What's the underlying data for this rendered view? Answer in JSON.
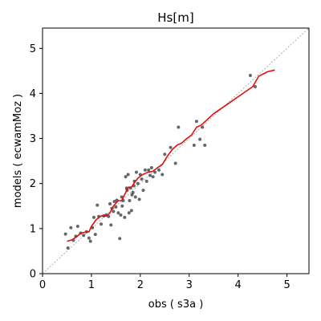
{
  "chart_data": {
    "type": "scatter",
    "title": "Hs[m]",
    "xlabel": "obs ( s3a )",
    "ylabel": "models ( ecwamMoz )",
    "xlim": [
      0,
      5.45
    ],
    "ylim": [
      0,
      5.45
    ],
    "xticks": [
      0,
      1,
      2,
      3,
      4,
      5
    ],
    "yticks": [
      0,
      1,
      2,
      3,
      4,
      5
    ],
    "grid": false,
    "legend": "none",
    "colors": {
      "points": "#333333",
      "fit_line": "#e01010",
      "reference_line": "#999999",
      "frame": "#000000"
    },
    "series": [
      {
        "kind": "scatter",
        "points": [
          [
            0.47,
            0.88
          ],
          [
            0.52,
            0.57
          ],
          [
            0.58,
            1.02
          ],
          [
            0.63,
            0.74
          ],
          [
            0.68,
            0.83
          ],
          [
            0.72,
            1.05
          ],
          [
            0.78,
            0.9
          ],
          [
            0.84,
            0.85
          ],
          [
            0.9,
            0.93
          ],
          [
            0.95,
            0.79
          ],
          [
            0.98,
            0.72
          ],
          [
            1.02,
            1.02
          ],
          [
            1.05,
            1.25
          ],
          [
            1.08,
            0.87
          ],
          [
            1.12,
            1.52
          ],
          [
            1.15,
            1.27
          ],
          [
            1.2,
            1.1
          ],
          [
            1.25,
            1.28
          ],
          [
            1.3,
            1.3
          ],
          [
            1.35,
            1.27
          ],
          [
            1.38,
            1.55
          ],
          [
            1.4,
            1.08
          ],
          [
            1.42,
            1.45
          ],
          [
            1.45,
            1.38
          ],
          [
            1.47,
            1.6
          ],
          [
            1.5,
            1.48
          ],
          [
            1.52,
            1.63
          ],
          [
            1.55,
            1.35
          ],
          [
            1.58,
            0.78
          ],
          [
            1.6,
            1.3
          ],
          [
            1.62,
            1.7
          ],
          [
            1.63,
            1.5
          ],
          [
            1.65,
            1.62
          ],
          [
            1.68,
            1.25
          ],
          [
            1.7,
            2.15
          ],
          [
            1.72,
            1.9
          ],
          [
            1.73,
            1.85
          ],
          [
            1.75,
            2.2
          ],
          [
            1.77,
            1.35
          ],
          [
            1.78,
            1.62
          ],
          [
            1.8,
            1.9
          ],
          [
            1.82,
            1.4
          ],
          [
            1.83,
            1.75
          ],
          [
            1.85,
            1.8
          ],
          [
            1.87,
            1.95
          ],
          [
            1.88,
            2.05
          ],
          [
            1.9,
            1.7
          ],
          [
            1.92,
            2.25
          ],
          [
            1.95,
            2.0
          ],
          [
            1.98,
            1.65
          ],
          [
            2.0,
            2.2
          ],
          [
            2.03,
            2.1
          ],
          [
            2.06,
            1.85
          ],
          [
            2.1,
            2.3
          ],
          [
            2.13,
            2.05
          ],
          [
            2.17,
            2.3
          ],
          [
            2.2,
            2.18
          ],
          [
            2.23,
            2.35
          ],
          [
            2.26,
            2.15
          ],
          [
            2.3,
            2.25
          ],
          [
            2.38,
            2.3
          ],
          [
            2.45,
            2.2
          ],
          [
            2.5,
            2.65
          ],
          [
            2.62,
            2.8
          ],
          [
            2.72,
            2.45
          ],
          [
            2.78,
            3.25
          ],
          [
            3.1,
            2.85
          ],
          [
            3.15,
            3.38
          ],
          [
            3.22,
            2.98
          ],
          [
            3.27,
            3.25
          ],
          [
            3.32,
            2.85
          ],
          [
            4.25,
            4.4
          ],
          [
            4.35,
            4.15
          ]
        ]
      },
      {
        "kind": "line",
        "points": [
          [
            0.5,
            0.72
          ],
          [
            0.6,
            0.75
          ],
          [
            0.7,
            0.82
          ],
          [
            0.78,
            0.9
          ],
          [
            0.88,
            0.92
          ],
          [
            0.95,
            0.93
          ],
          [
            1.0,
            1.05
          ],
          [
            1.1,
            1.2
          ],
          [
            1.2,
            1.28
          ],
          [
            1.3,
            1.28
          ],
          [
            1.38,
            1.35
          ],
          [
            1.45,
            1.5
          ],
          [
            1.55,
            1.62
          ],
          [
            1.62,
            1.62
          ],
          [
            1.7,
            1.8
          ],
          [
            1.76,
            1.92
          ],
          [
            1.82,
            1.92
          ],
          [
            1.88,
            2.02
          ],
          [
            1.95,
            2.12
          ],
          [
            2.05,
            2.2
          ],
          [
            2.15,
            2.25
          ],
          [
            2.25,
            2.27
          ],
          [
            2.35,
            2.35
          ],
          [
            2.45,
            2.42
          ],
          [
            2.55,
            2.6
          ],
          [
            2.65,
            2.75
          ],
          [
            2.75,
            2.85
          ],
          [
            2.85,
            2.9
          ],
          [
            2.95,
            3.0
          ],
          [
            3.05,
            3.08
          ],
          [
            3.15,
            3.25
          ],
          [
            3.25,
            3.3
          ],
          [
            3.35,
            3.4
          ],
          [
            3.5,
            3.55
          ],
          [
            3.7,
            3.7
          ],
          [
            3.9,
            3.85
          ],
          [
            4.1,
            4.0
          ],
          [
            4.3,
            4.15
          ],
          [
            4.42,
            4.38
          ],
          [
            4.6,
            4.48
          ],
          [
            4.75,
            4.52
          ]
        ]
      }
    ]
  }
}
